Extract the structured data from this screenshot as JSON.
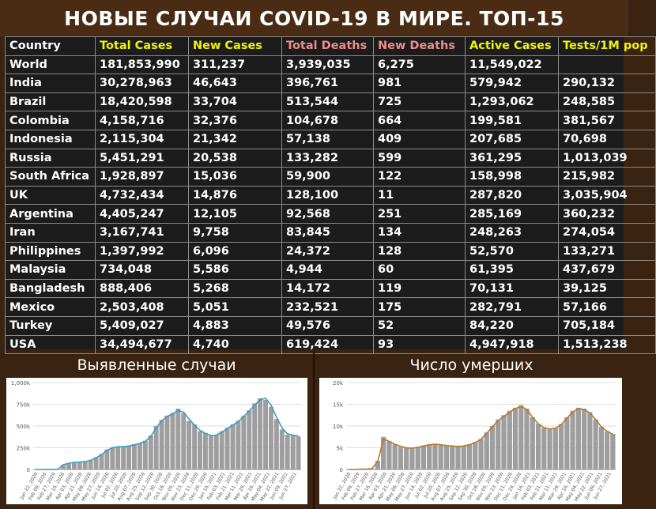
{
  "title": "НОВЫЕ СЛУЧАИ COVID-19 В МИРЕ. ТОП-15",
  "table": {
    "headers": [
      "Country",
      "Total Cases",
      "New Cases",
      "Total Deaths",
      "New Deaths",
      "Active Cases",
      "Tests/1M pop"
    ],
    "header_colors": [
      "white",
      "yellow",
      "yellow",
      "pink",
      "pink",
      "yellow",
      "yellow"
    ],
    "rows": [
      [
        "World",
        "181,853,990",
        "311,237",
        "3,939,035",
        "6,275",
        "11,549,022",
        ""
      ],
      [
        "India",
        "30,278,963",
        "46,643",
        "396,761",
        "981",
        "579,942",
        "290,132"
      ],
      [
        "Brazil",
        "18,420,598",
        "33,704",
        "513,544",
        "725",
        "1,293,062",
        "248,585"
      ],
      [
        "Colombia",
        "4,158,716",
        "32,376",
        "104,678",
        "664",
        "199,581",
        "381,567"
      ],
      [
        "Indonesia",
        "2,115,304",
        "21,342",
        "57,138",
        "409",
        "207,685",
        "70,698"
      ],
      [
        "Russia",
        "5,451,291",
        "20,538",
        "133,282",
        "599",
        "361,295",
        "1,013,039"
      ],
      [
        "South Africa",
        "1,928,897",
        "15,036",
        "59,900",
        "122",
        "158,998",
        "215,982"
      ],
      [
        "UK",
        "4,732,434",
        "14,876",
        "128,100",
        "11",
        "287,820",
        "3,035,904"
      ],
      [
        "Argentina",
        "4,405,247",
        "12,105",
        "92,568",
        "251",
        "285,169",
        "360,232"
      ],
      [
        "Iran",
        "3,167,741",
        "9,758",
        "83,845",
        "134",
        "248,263",
        "274,054"
      ],
      [
        "Philippines",
        "1,397,992",
        "6,096",
        "24,372",
        "128",
        "52,570",
        "133,271"
      ],
      [
        "Malaysia",
        "734,048",
        "5,586",
        "4,944",
        "60",
        "61,395",
        "437,679"
      ],
      [
        "Bangladesh",
        "888,406",
        "5,268",
        "14,172",
        "119",
        "70,131",
        "39,125"
      ],
      [
        "Mexico",
        "2,503,408",
        "5,051",
        "232,521",
        "175",
        "282,791",
        "57,166"
      ],
      [
        "Turkey",
        "5,409,027",
        "4,883",
        "49,576",
        "52",
        "84,220",
        "705,184"
      ],
      [
        "USA",
        "34,494,677",
        "4,740",
        "619,424",
        "93",
        "4,947,918",
        "1,513,238"
      ]
    ]
  },
  "colors": {
    "white": "#ffffff",
    "yellow": "#f4f20a",
    "pink": "#f28a8a",
    "cases_line": "#3a9cc4",
    "deaths_line": "#b8762a",
    "bars": "#9e9e9e"
  },
  "chart_data": [
    {
      "type": "bar",
      "title": "Выявленные случаи",
      "ylim": [
        0,
        1000000
      ],
      "yticks": [
        0,
        250000,
        500000,
        750000,
        1000000
      ],
      "ytick_labels": [
        "0",
        "250k",
        "500k",
        "750k",
        "1,000k"
      ],
      "xtick_labels": [
        "Jan 22, 2020",
        "Feb 09, 2020",
        "Feb 27, 2020",
        "Mar 16, 2020",
        "Apr 03, 2020",
        "Apr 21, 2020",
        "May 09, 2020",
        "May 27, 2020",
        "Jun 14, 2020",
        "Jul 02, 2020",
        "Jul 20, 2020",
        "Aug 07, 2020",
        "Aug 25, 2020",
        "Sep 12, 2020",
        "Sep 30, 2020",
        "Oct 18, 2020",
        "Nov 05, 2020",
        "Nov 23, 2020",
        "Dec 11, 2020",
        "Dec 29, 2020",
        "Jan 16, 2021",
        "Feb 03, 2021",
        "Feb 21, 2021",
        "Mar 11, 2021",
        "Mar 29, 2021",
        "Apr 16, 2021",
        "May 04, 2021",
        "May 22, 2021",
        "Jun 09, 2021",
        "Jun 27, 2021"
      ],
      "series": [
        {
          "kind": "bars",
          "values": [
            0,
            0,
            2000,
            2000,
            3000,
            55000,
            75000,
            85000,
            85000,
            90000,
            105000,
            140000,
            180000,
            230000,
            255000,
            265000,
            260000,
            270000,
            290000,
            305000,
            330000,
            390000,
            500000,
            570000,
            620000,
            650000,
            700000,
            650000,
            560000,
            520000,
            440000,
            420000,
            390000,
            400000,
            440000,
            480000,
            520000,
            560000,
            620000,
            680000,
            760000,
            820000,
            800000,
            720000,
            580000,
            460000,
            400000,
            390000,
            380000
          ]
        },
        {
          "kind": "line",
          "values": [
            0,
            0,
            2000,
            2000,
            3000,
            55000,
            72000,
            82000,
            85000,
            90000,
            105000,
            135000,
            170000,
            220000,
            250000,
            262000,
            262000,
            270000,
            285000,
            300000,
            325000,
            380000,
            480000,
            560000,
            610000,
            640000,
            680000,
            660000,
            580000,
            510000,
            450000,
            415000,
            390000,
            395000,
            430000,
            470000,
            510000,
            550000,
            610000,
            670000,
            740000,
            800000,
            820000,
            740000,
            600000,
            480000,
            410000,
            395000,
            385000
          ]
        }
      ]
    },
    {
      "type": "bar",
      "title": "Число умерших",
      "ylim": [
        0,
        20000
      ],
      "yticks": [
        0,
        5000,
        10000,
        15000,
        20000
      ],
      "ytick_labels": [
        "0",
        "5k",
        "10k",
        "15k",
        "20k"
      ],
      "xtick_labels": [
        "Jan 22, 2020",
        "Feb 09, 2020",
        "Feb 27, 2020",
        "Mar 16, 2020",
        "Apr 03, 2020",
        "Apr 21, 2020",
        "May 09, 2020",
        "May 27, 2020",
        "Jun 14, 2020",
        "Jul 02, 2020",
        "Jul 20, 2020",
        "Aug 07, 2020",
        "Aug 25, 2020",
        "Sep 12, 2020",
        "Sep 30, 2020",
        "Oct 18, 2020",
        "Nov 05, 2020",
        "Nov 23, 2020",
        "Dec 11, 2020",
        "Dec 29, 2020",
        "Jan 16, 2021",
        "Feb 03, 2021",
        "Feb 21, 2021",
        "Mar 11, 2021",
        "Mar 29, 2021",
        "Apr 16, 2021",
        "May 04, 2021",
        "May 22, 2021",
        "Jun 09, 2021",
        "Jun 27, 2021"
      ],
      "series": [
        {
          "kind": "bars",
          "values": [
            0,
            0,
            100,
            100,
            200,
            2000,
            7500,
            6500,
            5800,
            5200,
            5000,
            4900,
            5200,
            5500,
            5800,
            5900,
            5700,
            5500,
            5400,
            5200,
            5400,
            5800,
            6300,
            7000,
            8500,
            10000,
            11500,
            12500,
            13500,
            14200,
            14800,
            14000,
            12000,
            10500,
            9500,
            9200,
            9500,
            10500,
            12000,
            13500,
            14200,
            14000,
            13200,
            11500,
            9800,
            8800,
            8200
          ]
        },
        {
          "kind": "line",
          "values": [
            0,
            0,
            100,
            100,
            200,
            1800,
            7000,
            6500,
            5800,
            5300,
            5000,
            4900,
            5100,
            5400,
            5700,
            5800,
            5700,
            5500,
            5400,
            5300,
            5400,
            5700,
            6200,
            6900,
            8300,
            9800,
            11200,
            12200,
            13200,
            14000,
            14500,
            13800,
            12000,
            10500,
            9600,
            9300,
            9500,
            10300,
            11800,
            13200,
            14000,
            13800,
            13000,
            11500,
            9800,
            8800,
            8100
          ]
        }
      ]
    }
  ]
}
